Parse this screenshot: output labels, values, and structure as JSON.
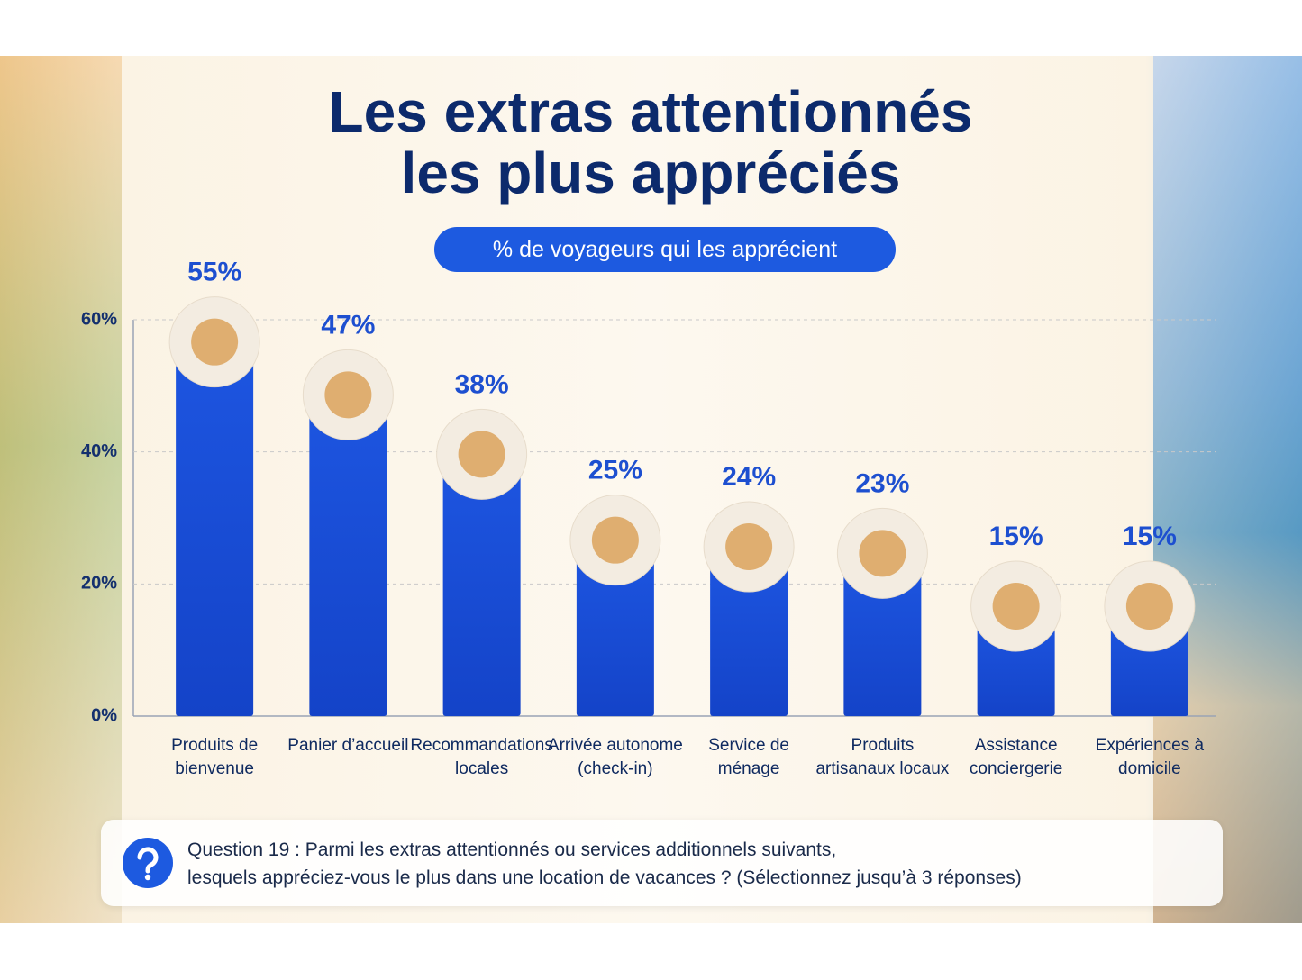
{
  "chart_data": {
    "type": "bar",
    "title": "Les extras attentionnés les plus appréciés",
    "subtitle": "% de voyageurs qui les apprécient",
    "categories": [
      "Produits de bienvenue",
      "Panier d’accueil",
      "Recommandations locales",
      "Arrivée autonome (check-in)",
      "Service de ménage",
      "Produits artisanaux locaux",
      "Assistance conciergerie",
      "Expériences à domicile"
    ],
    "values": [
      55,
      47,
      38,
      25,
      24,
      23,
      15,
      15
    ],
    "value_labels": [
      "55%",
      "47%",
      "38%",
      "25%",
      "24%",
      "23%",
      "15%",
      "15%"
    ],
    "color": "#1d55e0",
    "ylim": [
      0,
      60
    ],
    "yticks": [
      {
        "value": 0,
        "label": "0%"
      },
      {
        "value": 20,
        "label": "20%"
      },
      {
        "value": 40,
        "label": "40%"
      },
      {
        "value": 60,
        "label": "60%"
      }
    ],
    "grid": true,
    "note": [
      "Question 19 : Parmi les extras attentionnés ou services additionnels suivants,",
      "lesquels appréciez-vous le plus dans une location de vacances ? (Sélectionnez jusqu’à 3 réponses)"
    ]
  }
}
